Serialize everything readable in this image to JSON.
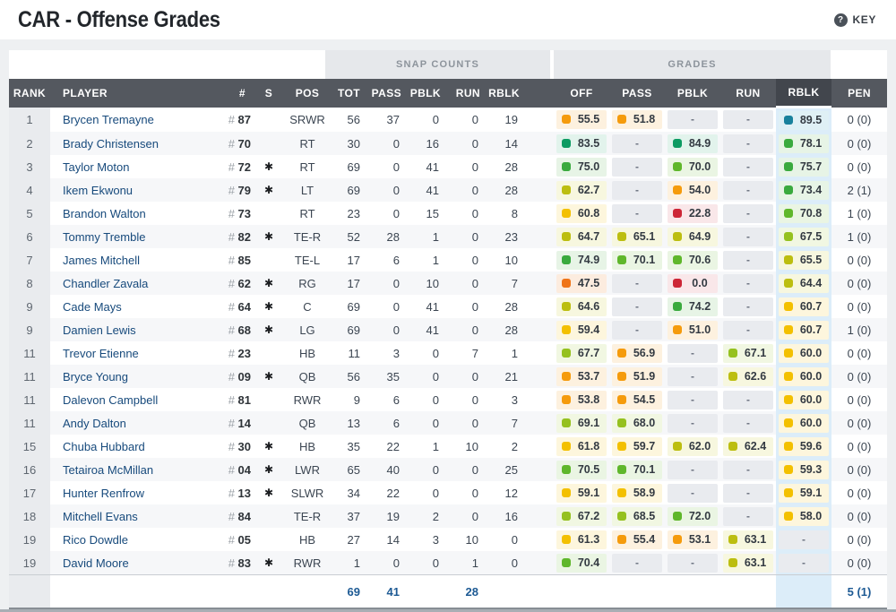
{
  "page": {
    "title": "CAR - Offense Grades",
    "key": {
      "icon": "?",
      "label": "KEY"
    }
  },
  "table": {
    "group_headers": {
      "snap_counts": "SNAP COUNTS",
      "grades": "GRADES"
    },
    "columns": [
      {
        "key": "rank",
        "label": "RANK"
      },
      {
        "key": "player",
        "label": "PLAYER"
      },
      {
        "key": "jersey",
        "label": "#"
      },
      {
        "key": "starter",
        "label": "S"
      },
      {
        "key": "pos",
        "label": "POS"
      },
      {
        "key": "snap-tot",
        "label": "TOT"
      },
      {
        "key": "snap-pass",
        "label": "PASS"
      },
      {
        "key": "snap-pblk",
        "label": "PBLK"
      },
      {
        "key": "snap-run",
        "label": "RUN"
      },
      {
        "key": "snap-rblk",
        "label": "RBLK"
      },
      {
        "key": "spacer",
        "label": ""
      },
      {
        "key": "grade-off",
        "label": "OFF"
      },
      {
        "key": "grade-pass",
        "label": "PASS"
      },
      {
        "key": "grade-pblk",
        "label": "PBLK"
      },
      {
        "key": "grade-run",
        "label": "RUN"
      },
      {
        "key": "grade-rblk",
        "label": "RBLK"
      },
      {
        "key": "pen",
        "label": "PEN"
      }
    ],
    "sorted_column": "grade-rblk",
    "dash": "-",
    "rows": [
      {
        "rank": "1",
        "player": "Brycen Tremayne",
        "jersey": "87",
        "starter": false,
        "pos": "SRWR",
        "snaps": [
          "56",
          "37",
          "0",
          "0",
          "19"
        ],
        "grades": [
          55.5,
          51.8,
          null,
          null,
          89.5
        ],
        "pen": "0 (0)"
      },
      {
        "rank": "2",
        "player": "Brady Christensen",
        "jersey": "70",
        "starter": false,
        "pos": "RT",
        "snaps": [
          "30",
          "0",
          "16",
          "0",
          "14"
        ],
        "grades": [
          83.5,
          null,
          84.9,
          null,
          78.1
        ],
        "pen": "0 (0)"
      },
      {
        "rank": "3",
        "player": "Taylor Moton",
        "jersey": "72",
        "starter": true,
        "pos": "RT",
        "snaps": [
          "69",
          "0",
          "41",
          "0",
          "28"
        ],
        "grades": [
          75.0,
          null,
          70.0,
          null,
          75.7
        ],
        "pen": "0 (0)"
      },
      {
        "rank": "4",
        "player": "Ikem Ekwonu",
        "jersey": "79",
        "starter": true,
        "pos": "LT",
        "snaps": [
          "69",
          "0",
          "41",
          "0",
          "28"
        ],
        "grades": [
          62.7,
          null,
          54.0,
          null,
          73.4
        ],
        "pen": "2 (1)"
      },
      {
        "rank": "5",
        "player": "Brandon Walton",
        "jersey": "73",
        "starter": false,
        "pos": "RT",
        "snaps": [
          "23",
          "0",
          "15",
          "0",
          "8"
        ],
        "grades": [
          60.8,
          null,
          22.8,
          null,
          70.8
        ],
        "pen": "1 (0)"
      },
      {
        "rank": "6",
        "player": "Tommy Tremble",
        "jersey": "82",
        "starter": true,
        "pos": "TE-R",
        "snaps": [
          "52",
          "28",
          "1",
          "0",
          "23"
        ],
        "grades": [
          64.7,
          65.1,
          64.9,
          null,
          67.5
        ],
        "pen": "1 (0)"
      },
      {
        "rank": "7",
        "player": "James Mitchell",
        "jersey": "85",
        "starter": false,
        "pos": "TE-L",
        "snaps": [
          "17",
          "6",
          "1",
          "0",
          "10"
        ],
        "grades": [
          74.9,
          70.1,
          70.6,
          null,
          65.5
        ],
        "pen": "0 (0)"
      },
      {
        "rank": "8",
        "player": "Chandler Zavala",
        "jersey": "62",
        "starter": true,
        "pos": "RG",
        "snaps": [
          "17",
          "0",
          "10",
          "0",
          "7"
        ],
        "grades": [
          47.5,
          null,
          0.0,
          null,
          64.4
        ],
        "pen": "0 (0)"
      },
      {
        "rank": "9",
        "player": "Cade Mays",
        "jersey": "64",
        "starter": true,
        "pos": "C",
        "snaps": [
          "69",
          "0",
          "41",
          "0",
          "28"
        ],
        "grades": [
          64.6,
          null,
          74.2,
          null,
          60.7
        ],
        "pen": "0 (0)"
      },
      {
        "rank": "9",
        "player": "Damien Lewis",
        "jersey": "68",
        "starter": true,
        "pos": "LG",
        "snaps": [
          "69",
          "0",
          "41",
          "0",
          "28"
        ],
        "grades": [
          59.4,
          null,
          51.0,
          null,
          60.7
        ],
        "pen": "1 (0)"
      },
      {
        "rank": "11",
        "player": "Trevor Etienne",
        "jersey": "23",
        "starter": false,
        "pos": "HB",
        "snaps": [
          "11",
          "3",
          "0",
          "7",
          "1"
        ],
        "grades": [
          67.7,
          56.9,
          null,
          67.1,
          60.0
        ],
        "pen": "0 (0)"
      },
      {
        "rank": "11",
        "player": "Bryce Young",
        "jersey": "09",
        "starter": true,
        "pos": "QB",
        "snaps": [
          "56",
          "35",
          "0",
          "0",
          "21"
        ],
        "grades": [
          53.7,
          51.9,
          null,
          62.6,
          60.0
        ],
        "pen": "0 (0)"
      },
      {
        "rank": "11",
        "player": "Dalevon Campbell",
        "jersey": "81",
        "starter": false,
        "pos": "RWR",
        "snaps": [
          "9",
          "6",
          "0",
          "0",
          "3"
        ],
        "grades": [
          53.8,
          54.5,
          null,
          null,
          60.0
        ],
        "pen": "0 (0)"
      },
      {
        "rank": "11",
        "player": "Andy Dalton",
        "jersey": "14",
        "starter": false,
        "pos": "QB",
        "snaps": [
          "13",
          "6",
          "0",
          "0",
          "7"
        ],
        "grades": [
          69.1,
          68.0,
          null,
          null,
          60.0
        ],
        "pen": "0 (0)"
      },
      {
        "rank": "15",
        "player": "Chuba Hubbard",
        "jersey": "30",
        "starter": true,
        "pos": "HB",
        "snaps": [
          "35",
          "22",
          "1",
          "10",
          "2"
        ],
        "grades": [
          61.8,
          59.7,
          62.0,
          62.4,
          59.6
        ],
        "pen": "0 (0)"
      },
      {
        "rank": "16",
        "player": "Tetairoa McMillan",
        "jersey": "04",
        "starter": true,
        "pos": "LWR",
        "snaps": [
          "65",
          "40",
          "0",
          "0",
          "25"
        ],
        "grades": [
          70.5,
          70.1,
          null,
          null,
          59.3
        ],
        "pen": "0 (0)"
      },
      {
        "rank": "17",
        "player": "Hunter Renfrow",
        "jersey": "13",
        "starter": true,
        "pos": "SLWR",
        "snaps": [
          "34",
          "22",
          "0",
          "0",
          "12"
        ],
        "grades": [
          59.1,
          58.9,
          null,
          null,
          59.1
        ],
        "pen": "0 (0)"
      },
      {
        "rank": "18",
        "player": "Mitchell Evans",
        "jersey": "84",
        "starter": false,
        "pos": "TE-R",
        "snaps": [
          "37",
          "19",
          "2",
          "0",
          "16"
        ],
        "grades": [
          67.2,
          68.5,
          72.0,
          null,
          58.0
        ],
        "pen": "0 (0)"
      },
      {
        "rank": "19",
        "player": "Rico Dowdle",
        "jersey": "05",
        "starter": false,
        "pos": "HB",
        "snaps": [
          "27",
          "14",
          "3",
          "10",
          "0"
        ],
        "grades": [
          61.3,
          55.4,
          53.1,
          63.1,
          null
        ],
        "pen": "0 (0)"
      },
      {
        "rank": "19",
        "player": "David Moore",
        "jersey": "83",
        "starter": true,
        "pos": "RWR",
        "snaps": [
          "1",
          "0",
          "0",
          "1",
          "0"
        ],
        "grades": [
          70.4,
          null,
          null,
          63.1,
          null
        ],
        "pen": "0 (0)"
      }
    ],
    "footer": {
      "snap_totals": [
        "69",
        "41",
        "",
        "28",
        ""
      ],
      "grade_totals": [
        "",
        "",
        "",
        "",
        ""
      ],
      "pen_total": "5 (1)"
    },
    "starter_icon": "✱"
  },
  "colors": {
    "header_bg": "#54585f",
    "header_active_bg": "#42464d",
    "rblk_column_bg": "#dcedf9",
    "dash_pill_bg": "#e9ebef",
    "footer_total_color": "#1d5a94",
    "grade_scale": [
      {
        "min": 88,
        "square": "#19819c",
        "bg": "#dff0f5"
      },
      {
        "min": 80,
        "square": "#0c9b62",
        "bg": "#e2f3ec"
      },
      {
        "min": 73,
        "square": "#3aaa3e",
        "bg": "#e7f4e6"
      },
      {
        "min": 70,
        "square": "#5fb72b",
        "bg": "#eaf5e3"
      },
      {
        "min": 66.5,
        "square": "#95c11f",
        "bg": "#f1f7e2"
      },
      {
        "min": 62,
        "square": "#bcbe10",
        "bg": "#f7f7df"
      },
      {
        "min": 57.5,
        "square": "#f3c000",
        "bg": "#fdf6dd"
      },
      {
        "min": 50,
        "square": "#f59b0c",
        "bg": "#fdf1df"
      },
      {
        "min": 40,
        "square": "#ef7418",
        "bg": "#fcecdf"
      },
      {
        "min": 0,
        "square": "#cd2636",
        "bg": "#f9e7e9"
      }
    ]
  }
}
